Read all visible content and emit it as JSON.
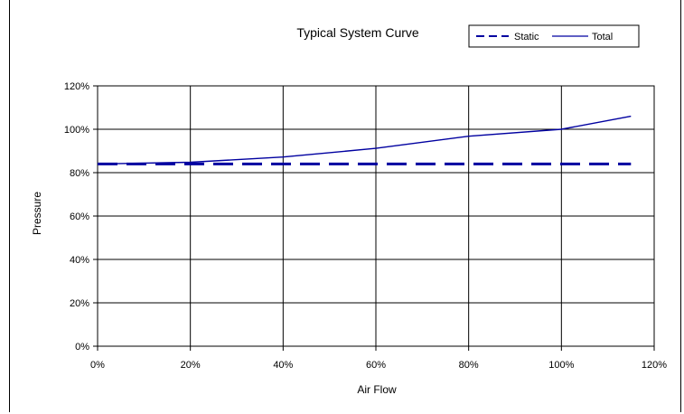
{
  "chart_data": {
    "type": "line",
    "title": "Typical System Curve",
    "xlabel": "Air Flow",
    "ylabel": "Pressure",
    "xlim": [
      0,
      120
    ],
    "ylim": [
      0,
      120
    ],
    "x_ticks": [
      "0%",
      "20%",
      "40%",
      "60%",
      "80%",
      "100%",
      "120%"
    ],
    "y_ticks": [
      "0%",
      "20%",
      "40%",
      "60%",
      "80%",
      "100%",
      "120%"
    ],
    "grid": true,
    "legend_position": "top-right",
    "series": [
      {
        "name": "Static",
        "style": "dashed",
        "color": "#0000A0",
        "x": [
          0,
          20,
          40,
          60,
          80,
          100,
          115
        ],
        "y": [
          84,
          84,
          84,
          84,
          84,
          84,
          84
        ]
      },
      {
        "name": "Total",
        "style": "solid",
        "color": "#0000A0",
        "x": [
          0,
          20,
          40,
          60,
          80,
          100,
          115
        ],
        "y": [
          84,
          84.8,
          87.2,
          91.2,
          96.8,
          100,
          106
        ]
      }
    ]
  }
}
